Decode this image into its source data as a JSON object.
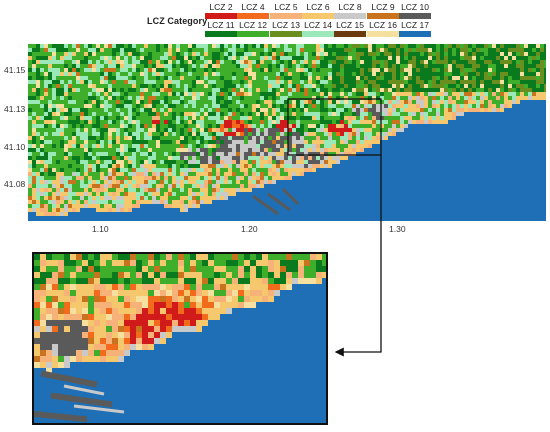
{
  "legend": {
    "title": "LCZ Category",
    "items": [
      {
        "label": "LCZ 2",
        "color": "#d11a1a"
      },
      {
        "label": "LCZ 4",
        "color": "#f26b1d"
      },
      {
        "label": "LCZ 5",
        "color": "#f7b27a"
      },
      {
        "label": "LCZ 6",
        "color": "#f5c86e"
      },
      {
        "label": "LCZ 8",
        "color": "#c9c9c9"
      },
      {
        "label": "LCZ 9",
        "color": "#c8731e"
      },
      {
        "label": "LCZ 10",
        "color": "#5a5a5a"
      },
      {
        "label": "LCZ 11",
        "color": "#0a7a1f"
      },
      {
        "label": "LCZ 12",
        "color": "#3fae2a"
      },
      {
        "label": "LCZ 13",
        "color": "#6b8f1f"
      },
      {
        "label": "LCZ 14",
        "color": "#9be8b8"
      },
      {
        "label": "LCZ 15",
        "color": "#6b3a10"
      },
      {
        "label": "LCZ 16",
        "color": "#f5e0a0"
      },
      {
        "label": "LCZ 17",
        "color": "#1e6fb5"
      }
    ]
  },
  "map": {
    "lat_ticks": [
      "41.15",
      "41.13",
      "41.10",
      "41.08"
    ],
    "lon_ticks": [
      "1.10",
      "1.20",
      "1.30"
    ]
  }
}
